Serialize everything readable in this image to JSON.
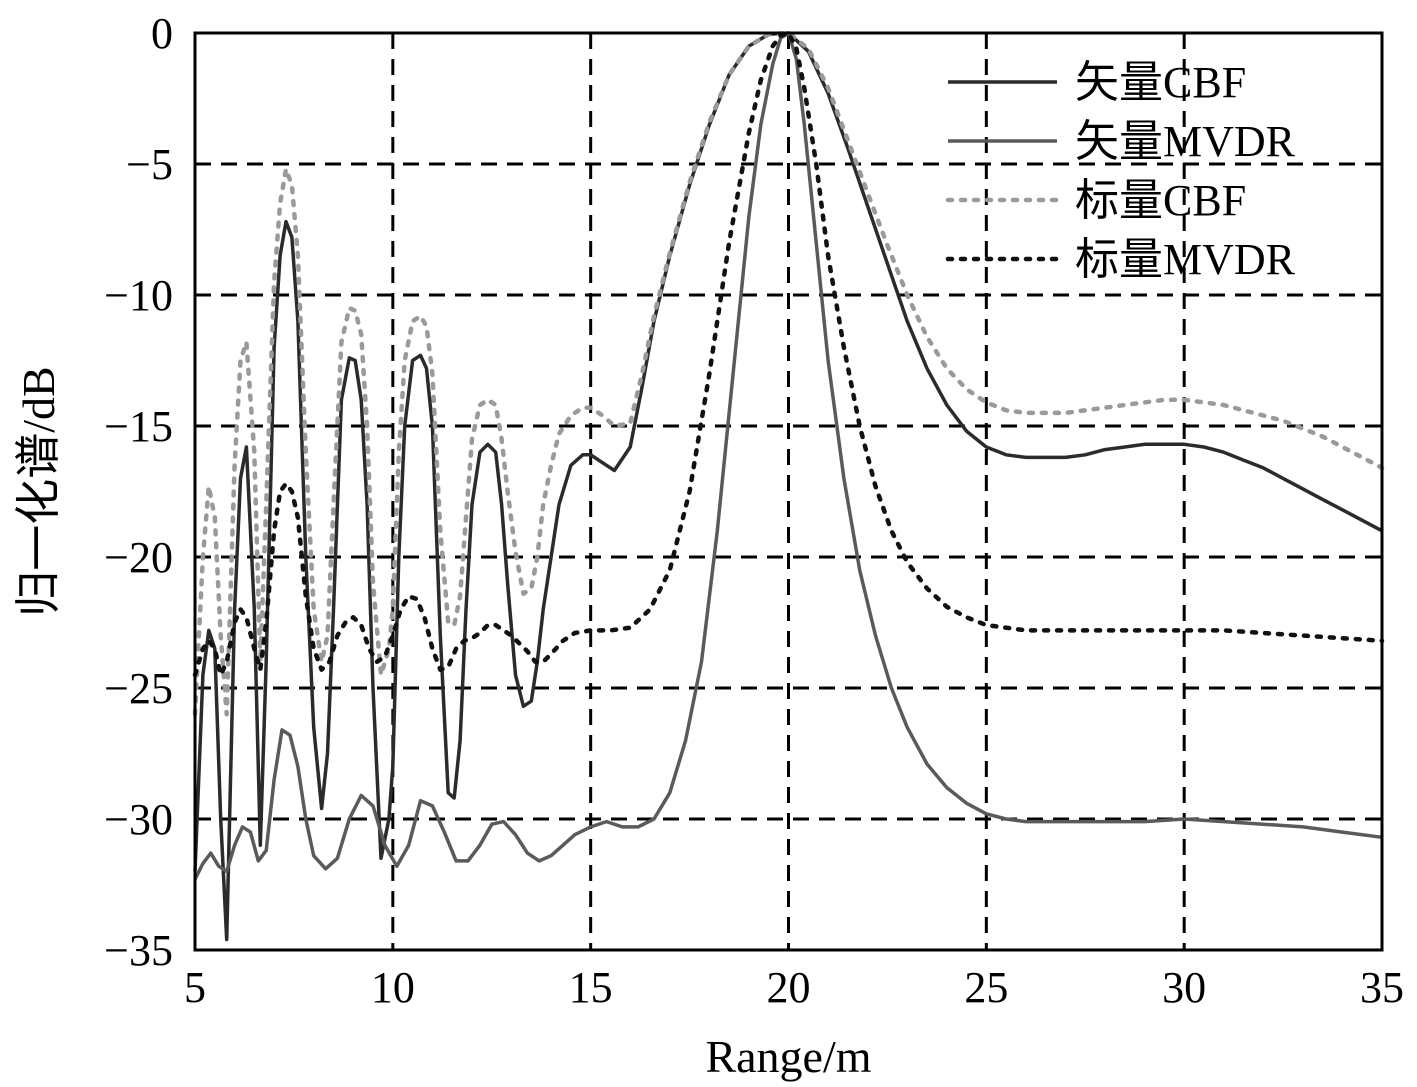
{
  "chart_data": {
    "type": "line",
    "xlabel": "Range/m",
    "ylabel": "归一化谱/dB",
    "xlim": [
      5,
      35
    ],
    "ylim": [
      -35,
      0
    ],
    "xticks": [
      5,
      10,
      15,
      20,
      25,
      30,
      35
    ],
    "yticks": [
      0,
      -5,
      -10,
      -15,
      -20,
      -25,
      -30,
      -35
    ],
    "ytick_labels": [
      "0",
      "−5",
      "−10",
      "−15",
      "−20",
      "−25",
      "−30",
      "−35"
    ],
    "xtick_labels": [
      "5",
      "10",
      "15",
      "20",
      "25",
      "30",
      "35"
    ],
    "grid": true,
    "legend_position": "top-right",
    "series": [
      {
        "name": "矢量CBF",
        "color": "#2b2b2b",
        "style": "solid",
        "x": [
          5.0,
          5.2,
          5.35,
          5.5,
          5.65,
          5.8,
          6.0,
          6.15,
          6.3,
          6.5,
          6.65,
          6.8,
          7.0,
          7.15,
          7.3,
          7.45,
          7.6,
          7.8,
          8.0,
          8.2,
          8.35,
          8.5,
          8.7,
          8.9,
          9.05,
          9.2,
          9.35,
          9.5,
          9.7,
          9.9,
          10.0,
          10.15,
          10.3,
          10.5,
          10.7,
          10.85,
          11.0,
          11.2,
          11.4,
          11.55,
          11.7,
          11.85,
          12.0,
          12.2,
          12.4,
          12.6,
          12.75,
          12.9,
          13.1,
          13.3,
          13.5,
          13.65,
          13.8,
          14.0,
          14.2,
          14.5,
          14.8,
          15.0,
          15.3,
          15.6,
          16.0,
          16.3,
          16.6,
          17.0,
          17.5,
          18.0,
          18.5,
          19.0,
          19.5,
          20.0,
          20.5,
          21.0,
          21.5,
          22.0,
          22.5,
          23.0,
          23.5,
          24.0,
          24.5,
          25.0,
          25.5,
          26.0,
          26.5,
          27.0,
          27.5,
          28.0,
          28.5,
          29.0,
          29.5,
          30.0,
          30.5,
          31.0,
          31.5,
          32.0,
          32.5,
          33.0,
          33.5,
          34.0,
          34.5,
          35.0
        ],
        "y": [
          -32.0,
          -24.5,
          -22.8,
          -23.5,
          -30.0,
          -34.6,
          -22.0,
          -17.0,
          -15.8,
          -22.0,
          -31.0,
          -24.0,
          -12.0,
          -8.5,
          -7.2,
          -7.8,
          -11.0,
          -20.0,
          -26.5,
          -29.6,
          -27.5,
          -22.0,
          -14.0,
          -12.4,
          -12.5,
          -14.0,
          -18.0,
          -25.0,
          -31.5,
          -30.0,
          -28.0,
          -20.0,
          -15.0,
          -12.5,
          -12.3,
          -12.8,
          -15.0,
          -23.0,
          -29.0,
          -29.2,
          -27.0,
          -22.0,
          -18.0,
          -16.0,
          -15.7,
          -16.0,
          -18.0,
          -21.0,
          -24.5,
          -25.7,
          -25.5,
          -24.0,
          -22.0,
          -20.0,
          -18.0,
          -16.5,
          -16.1,
          -16.1,
          -16.4,
          -16.7,
          -15.8,
          -13.5,
          -11.0,
          -8.5,
          -5.8,
          -3.5,
          -1.6,
          -0.5,
          -0.05,
          0.0,
          -0.7,
          -2.3,
          -4.4,
          -6.6,
          -8.8,
          -11.0,
          -12.8,
          -14.2,
          -15.2,
          -15.8,
          -16.1,
          -16.2,
          -16.2,
          -16.2,
          -16.1,
          -15.9,
          -15.8,
          -15.7,
          -15.7,
          -15.7,
          -15.8,
          -16.0,
          -16.3,
          -16.6,
          -17.0,
          -17.4,
          -17.8,
          -18.2,
          -18.6,
          -19.0
        ]
      },
      {
        "name": "矢量MVDR",
        "color": "#5a5a5a",
        "style": "solid",
        "x": [
          5.0,
          5.2,
          5.4,
          5.6,
          5.8,
          6.0,
          6.2,
          6.4,
          6.6,
          6.8,
          7.0,
          7.2,
          7.4,
          7.6,
          7.8,
          8.0,
          8.3,
          8.6,
          8.9,
          9.2,
          9.5,
          9.8,
          10.1,
          10.4,
          10.7,
          11.0,
          11.3,
          11.6,
          11.9,
          12.2,
          12.5,
          12.8,
          13.1,
          13.4,
          13.7,
          14.0,
          14.3,
          14.6,
          15.0,
          15.4,
          15.8,
          16.2,
          16.6,
          17.0,
          17.4,
          17.8,
          18.2,
          18.6,
          19.0,
          19.3,
          19.6,
          19.8,
          20.0,
          20.2,
          20.4,
          20.7,
          21.0,
          21.4,
          21.8,
          22.2,
          22.6,
          23.0,
          23.5,
          24.0,
          24.5,
          25.0,
          25.5,
          26.0,
          27.0,
          28.0,
          29.0,
          30.0,
          31.0,
          32.0,
          33.0,
          34.0,
          35.0
        ],
        "y": [
          -32.3,
          -31.7,
          -31.3,
          -31.8,
          -32.0,
          -31.0,
          -30.3,
          -30.5,
          -31.6,
          -31.2,
          -28.5,
          -26.6,
          -26.8,
          -28.0,
          -30.0,
          -31.4,
          -31.9,
          -31.5,
          -30.0,
          -29.1,
          -29.5,
          -31.0,
          -31.8,
          -31.0,
          -29.3,
          -29.5,
          -30.5,
          -31.6,
          -31.6,
          -31.0,
          -30.2,
          -30.1,
          -30.6,
          -31.3,
          -31.6,
          -31.4,
          -31.0,
          -30.6,
          -30.3,
          -30.1,
          -30.3,
          -30.3,
          -30.0,
          -29.0,
          -27.0,
          -24.0,
          -19.0,
          -13.0,
          -7.0,
          -3.5,
          -1.2,
          -0.2,
          0.0,
          -1.0,
          -3.5,
          -8.0,
          -12.5,
          -17.0,
          -20.5,
          -23.0,
          -25.0,
          -26.5,
          -27.9,
          -28.8,
          -29.4,
          -29.8,
          -30.0,
          -30.1,
          -30.1,
          -30.1,
          -30.1,
          -30.0,
          -30.1,
          -30.2,
          -30.3,
          -30.5,
          -30.7
        ]
      },
      {
        "name": "标量CBF",
        "color": "#9a9a9a",
        "style": "dotted",
        "x": [
          5.0,
          5.2,
          5.35,
          5.5,
          5.65,
          5.8,
          6.0,
          6.15,
          6.3,
          6.5,
          6.65,
          6.8,
          7.0,
          7.15,
          7.3,
          7.45,
          7.6,
          7.8,
          8.0,
          8.2,
          8.35,
          8.5,
          8.7,
          8.9,
          9.05,
          9.2,
          9.35,
          9.5,
          9.7,
          9.9,
          10.0,
          10.15,
          10.3,
          10.5,
          10.7,
          10.85,
          11.0,
          11.2,
          11.4,
          11.55,
          11.7,
          11.85,
          12.0,
          12.2,
          12.4,
          12.6,
          12.75,
          12.9,
          13.1,
          13.3,
          13.5,
          13.65,
          13.8,
          14.0,
          14.2,
          14.5,
          14.8,
          15.0,
          15.3,
          15.6,
          16.0,
          16.3,
          16.6,
          17.0,
          17.5,
          18.0,
          18.5,
          19.0,
          19.5,
          20.0,
          20.5,
          21.0,
          21.5,
          22.0,
          22.5,
          23.0,
          23.5,
          24.0,
          24.5,
          25.0,
          25.5,
          26.0,
          26.5,
          27.0,
          27.5,
          28.0,
          28.5,
          29.0,
          29.5,
          30.0,
          30.5,
          31.0,
          31.5,
          32.0,
          32.5,
          33.0,
          33.5,
          34.0,
          34.5,
          35.0
        ],
        "y": [
          -26.0,
          -20.0,
          -17.3,
          -18.5,
          -23.0,
          -26.0,
          -16.5,
          -12.5,
          -11.8,
          -16.0,
          -24.0,
          -18.0,
          -9.5,
          -6.5,
          -5.2,
          -5.8,
          -8.5,
          -16.0,
          -22.0,
          -24.0,
          -23.0,
          -18.0,
          -11.8,
          -10.5,
          -10.6,
          -11.5,
          -15.0,
          -21.0,
          -24.5,
          -23.5,
          -22.0,
          -16.0,
          -12.5,
          -11.0,
          -10.8,
          -11.2,
          -13.0,
          -19.0,
          -22.5,
          -22.6,
          -21.5,
          -18.5,
          -15.5,
          -14.2,
          -14.0,
          -14.2,
          -15.5,
          -17.5,
          -19.8,
          -21.4,
          -21.2,
          -20.0,
          -18.0,
          -16.5,
          -15.3,
          -14.6,
          -14.3,
          -14.3,
          -14.6,
          -15.0,
          -14.9,
          -13.0,
          -10.8,
          -8.4,
          -5.7,
          -3.4,
          -1.6,
          -0.5,
          -0.05,
          0.0,
          -0.6,
          -2.1,
          -4.1,
          -6.1,
          -8.1,
          -10.0,
          -11.6,
          -12.8,
          -13.6,
          -14.1,
          -14.4,
          -14.5,
          -14.5,
          -14.5,
          -14.4,
          -14.3,
          -14.2,
          -14.1,
          -14.0,
          -14.0,
          -14.1,
          -14.2,
          -14.4,
          -14.6,
          -14.8,
          -15.1,
          -15.4,
          -15.8,
          -16.2,
          -16.6
        ]
      },
      {
        "name": "标量MVDR",
        "color": "#111111",
        "style": "dotted",
        "x": [
          5.0,
          5.2,
          5.35,
          5.5,
          5.65,
          5.8,
          6.0,
          6.15,
          6.3,
          6.5,
          6.65,
          6.8,
          7.0,
          7.15,
          7.3,
          7.45,
          7.6,
          7.8,
          8.0,
          8.2,
          8.4,
          8.6,
          8.8,
          9.0,
          9.2,
          9.4,
          9.6,
          9.8,
          10.0,
          10.2,
          10.4,
          10.6,
          10.8,
          11.0,
          11.2,
          11.4,
          11.6,
          11.8,
          12.0,
          12.2,
          12.4,
          12.6,
          12.8,
          13.0,
          13.2,
          13.4,
          13.6,
          13.8,
          14.0,
          14.3,
          14.6,
          15.0,
          15.5,
          16.0,
          16.5,
          17.0,
          17.5,
          18.0,
          18.5,
          19.0,
          19.3,
          19.6,
          19.8,
          20.0,
          20.2,
          20.4,
          20.7,
          21.0,
          21.4,
          21.8,
          22.2,
          22.6,
          23.0,
          23.5,
          24.0,
          24.5,
          25.0,
          25.5,
          26.0,
          26.5,
          27.0,
          28.0,
          29.0,
          30.0,
          31.0,
          32.0,
          33.0,
          34.0,
          35.0
        ],
        "y": [
          -24.5,
          -23.5,
          -23.2,
          -23.5,
          -24.5,
          -24.0,
          -22.5,
          -22.0,
          -22.3,
          -23.5,
          -24.3,
          -22.5,
          -19.0,
          -17.5,
          -17.2,
          -17.5,
          -18.5,
          -21.5,
          -23.5,
          -24.3,
          -24.0,
          -23.0,
          -22.5,
          -22.3,
          -22.6,
          -23.5,
          -24.0,
          -23.8,
          -23.0,
          -22.0,
          -21.5,
          -21.6,
          -22.3,
          -23.5,
          -24.3,
          -24.2,
          -23.5,
          -23.2,
          -23.1,
          -22.9,
          -22.6,
          -22.6,
          -22.8,
          -23.0,
          -23.3,
          -23.6,
          -24.0,
          -24.0,
          -23.7,
          -23.2,
          -22.9,
          -22.8,
          -22.8,
          -22.7,
          -22.0,
          -20.5,
          -17.5,
          -13.0,
          -8.0,
          -3.8,
          -1.8,
          -0.5,
          -0.1,
          0.0,
          -0.6,
          -2.1,
          -5.0,
          -8.5,
          -12.0,
          -15.0,
          -17.3,
          -19.0,
          -20.2,
          -21.2,
          -21.9,
          -22.3,
          -22.6,
          -22.7,
          -22.8,
          -22.8,
          -22.8,
          -22.8,
          -22.8,
          -22.8,
          -22.8,
          -22.9,
          -23.0,
          -23.1,
          -23.2
        ]
      }
    ]
  }
}
